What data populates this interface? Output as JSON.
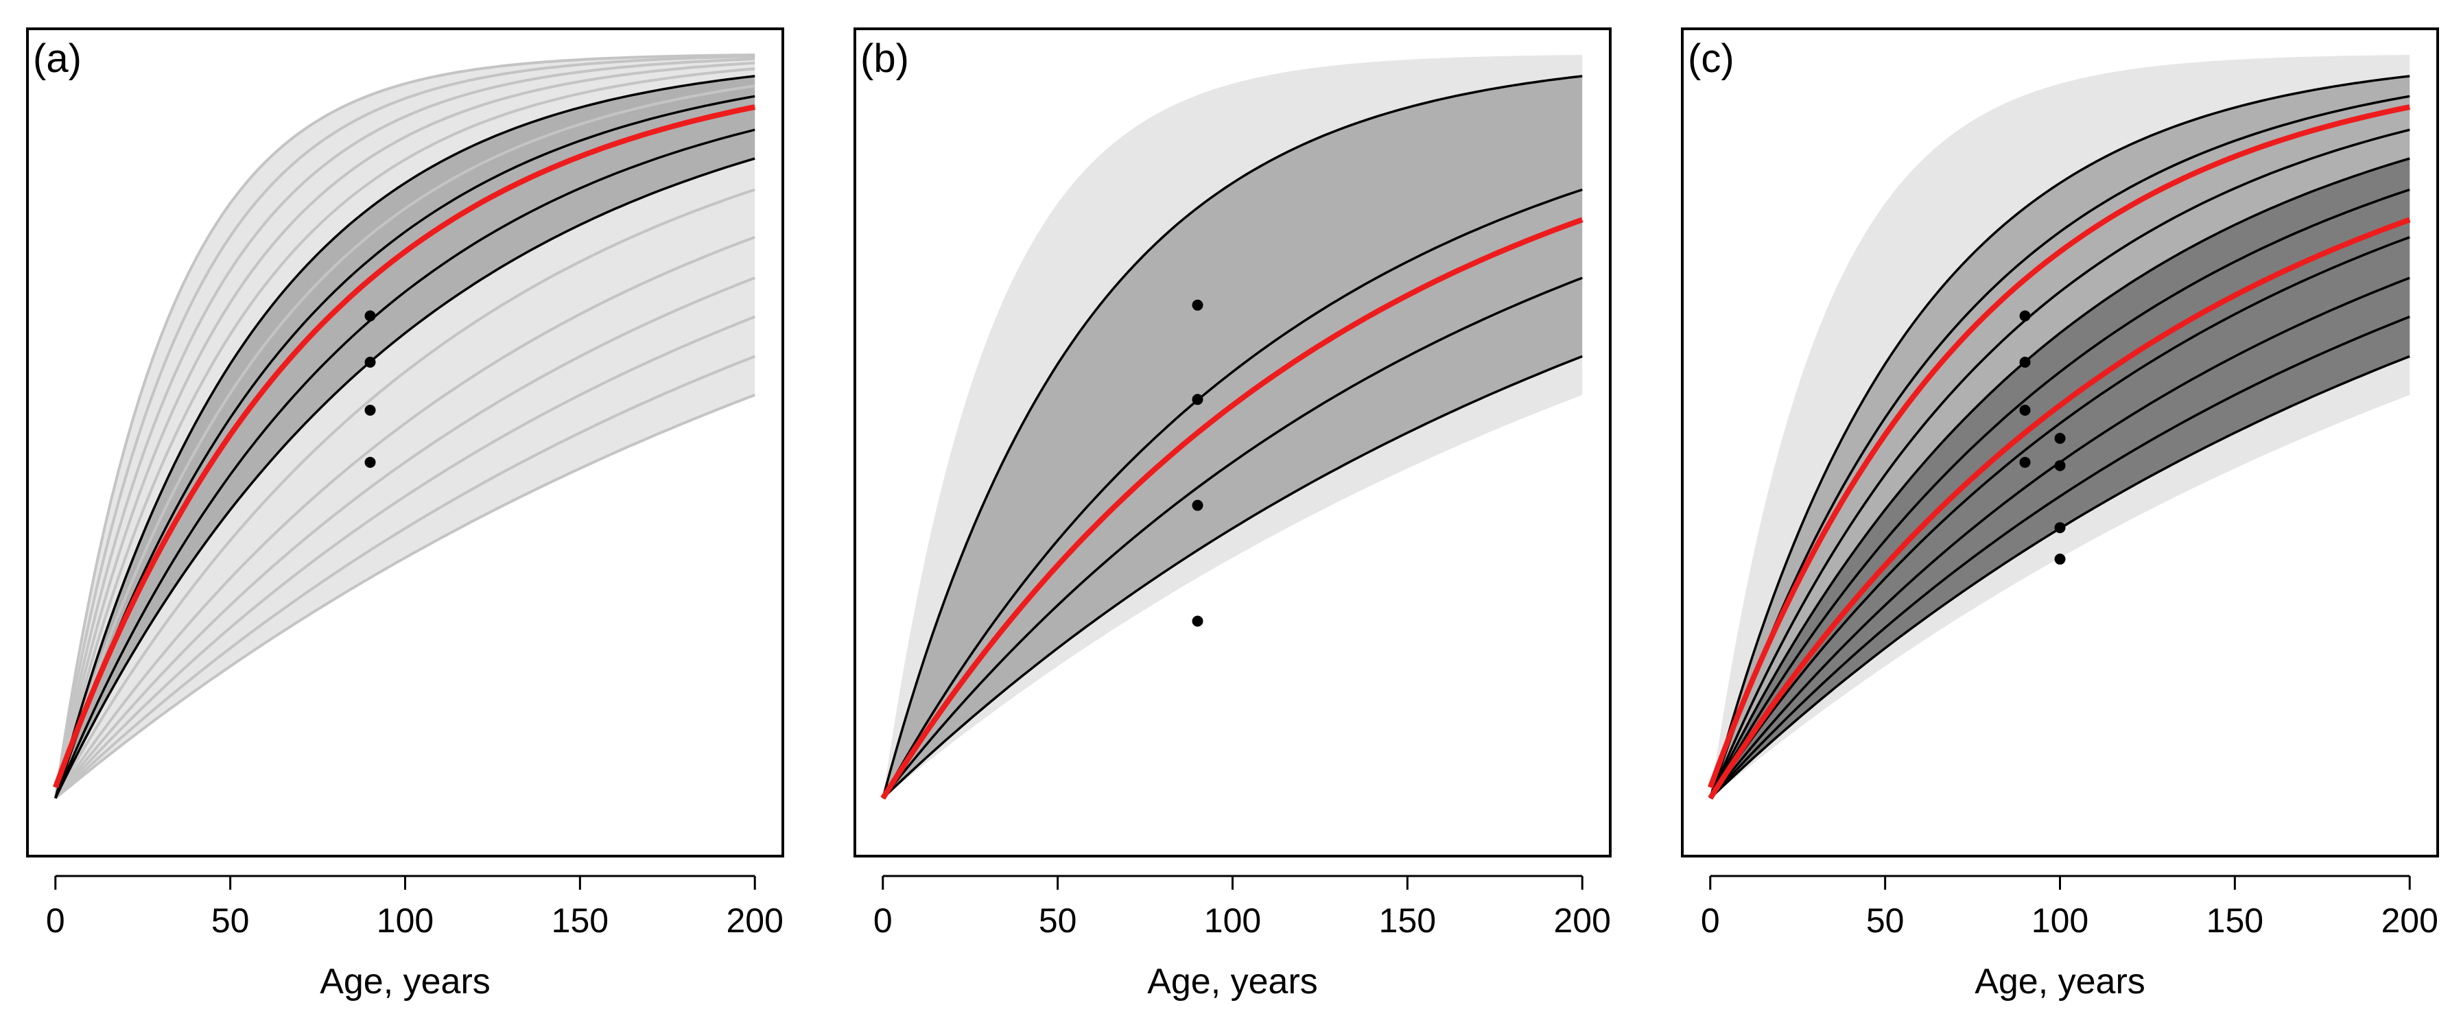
{
  "figure": {
    "colors": {
      "background_band": "#e6e6e6",
      "gray_curve": "#c4c4c4",
      "inner_band": "#b0b0b0",
      "dark_band": "#7d7d7d",
      "black_line": "#000000",
      "red_line": "#ee1c1c"
    }
  },
  "chart_data": [
    {
      "type": "line",
      "panel_label": "(a)",
      "xlabel": "Age, years",
      "ylabel": "",
      "xlim": [
        -8,
        208
      ],
      "ylim": [
        0,
        1
      ],
      "xticks": [
        "0",
        "50",
        "100",
        "150",
        "200"
      ],
      "background_band": {
        "from": "lowest_gray",
        "to": "highest_gray"
      },
      "gray_curves": {
        "k": [
          0.0039,
          0.0045,
          0.0052,
          0.006,
          0.007,
          0.0085,
          0.0098,
          0.0114,
          0.0143,
          0.0157,
          0.0175,
          0.0195,
          0.0219,
          0.0247,
          0.0281,
          0.0321
        ],
        "y0": 0.07,
        "ymax": 0.97
      },
      "inner_band": {
        "lower_k": 0.0098,
        "upper_k": 0.0175,
        "y0": 0.07,
        "ymax": 0.97
      },
      "black_curves": {
        "k": [
          0.0098,
          0.0114,
          0.0143,
          0.0175
        ],
        "y0": 0.07,
        "ymax": 0.97
      },
      "red_curve": {
        "k": 0.0131,
        "y0": 0.083,
        "ymax": 0.97
      },
      "markers": [
        {
          "x": 90,
          "y": 0.653
        },
        {
          "x": 90,
          "y": 0.597
        },
        {
          "x": 90,
          "y": 0.539
        },
        {
          "x": 90,
          "y": 0.476
        }
      ]
    },
    {
      "type": "line",
      "panel_label": "(b)",
      "xlabel": "Age, years",
      "ylabel": "",
      "xlim": [
        -8,
        208
      ],
      "ylim": [
        0,
        1
      ],
      "xticks": [
        "0",
        "50",
        "100",
        "150",
        "200"
      ],
      "background_band": {
        "lower_k": 0.0039,
        "upper_k": 0.0321,
        "y0": 0.07,
        "ymax": 0.97
      },
      "inner_band": {
        "lower_k": 0.0045,
        "upper_k": 0.0175,
        "y0": 0.07,
        "ymax": 0.97
      },
      "black_curves": {
        "k": [
          0.0045,
          0.006,
          0.0085,
          0.0175
        ],
        "y0": 0.07,
        "ymax": 0.97
      },
      "red_curve": {
        "k": 0.0075,
        "y0": 0.07,
        "ymax": 0.97
      },
      "markers": [
        {
          "x": 90,
          "y": 0.666
        },
        {
          "x": 90,
          "y": 0.552
        },
        {
          "x": 90,
          "y": 0.424
        },
        {
          "x": 90,
          "y": 0.284
        }
      ]
    },
    {
      "type": "line",
      "panel_label": "(c)",
      "xlabel": "Age, years",
      "ylabel": "",
      "xlim": [
        -8,
        208
      ],
      "ylim": [
        0,
        1
      ],
      "xticks": [
        "0",
        "50",
        "100",
        "150",
        "200"
      ],
      "background_band": {
        "lower_k": 0.0039,
        "upper_k": 0.0321,
        "y0": 0.07,
        "ymax": 0.97
      },
      "inner_band": {
        "lower_k": 0.0045,
        "upper_k": 0.0175,
        "y0": 0.07,
        "ymax": 0.97
      },
      "dark_band": {
        "lower_k": 0.0045,
        "upper_k": 0.0098,
        "y0": 0.07,
        "ymax": 0.97
      },
      "black_curves": {
        "k": [
          0.0045,
          0.0052,
          0.006,
          0.007,
          0.0085,
          0.0098,
          0.0114,
          0.0143,
          0.0175
        ],
        "y0": 0.07,
        "ymax": 0.97
      },
      "red_curves": [
        {
          "k": 0.0131,
          "y0": 0.083,
          "ymax": 0.97
        },
        {
          "k": 0.0075,
          "y0": 0.07,
          "ymax": 0.97
        }
      ],
      "markers": [
        {
          "x": 90,
          "y": 0.653
        },
        {
          "x": 90,
          "y": 0.597
        },
        {
          "x": 90,
          "y": 0.539
        },
        {
          "x": 90,
          "y": 0.476
        },
        {
          "x": 100,
          "y": 0.505
        },
        {
          "x": 100,
          "y": 0.472
        },
        {
          "x": 100,
          "y": 0.397
        },
        {
          "x": 100,
          "y": 0.359
        }
      ]
    }
  ]
}
